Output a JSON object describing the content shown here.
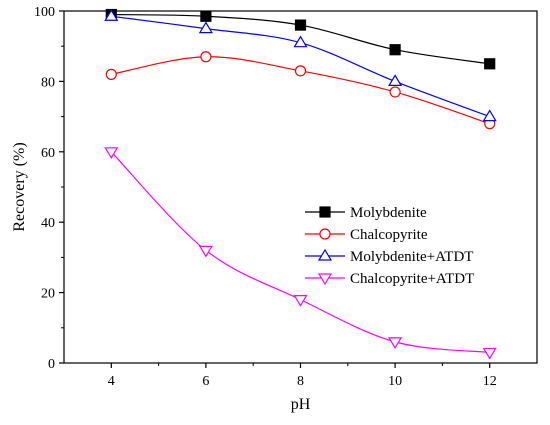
{
  "chart_data": {
    "type": "line",
    "xlabel": "pH",
    "ylabel": "Recovery (%)",
    "xlim": [
      3,
      13
    ],
    "ylim": [
      0,
      100
    ],
    "xticks": [
      4,
      6,
      8,
      10,
      12
    ],
    "yticks": [
      0,
      20,
      40,
      60,
      80,
      100
    ],
    "grid": false,
    "legend_position": "center-right",
    "series": [
      {
        "name": "Molybdenite",
        "color": "#000000",
        "marker": "square-filled",
        "x": [
          4,
          6,
          8,
          10,
          12
        ],
        "y": [
          99,
          98.5,
          96,
          89,
          85
        ]
      },
      {
        "name": "Chalcopyrite",
        "color": "#ff0000",
        "marker": "circle-open",
        "x": [
          4,
          6,
          8,
          10,
          12
        ],
        "y": [
          82,
          87,
          83,
          77,
          68
        ]
      },
      {
        "name": "Molybdenite+ATDT",
        "color": "#0000ff",
        "marker": "triangle-up-open",
        "x": [
          4,
          6,
          8,
          10,
          12
        ],
        "y": [
          98.5,
          95,
          91,
          80,
          70
        ]
      },
      {
        "name": "Chalcopyrite+ATDT",
        "color": "#ff00ff",
        "marker": "triangle-down-open",
        "x": [
          4,
          6,
          8,
          10,
          12
        ],
        "y": [
          60,
          32,
          18,
          6,
          3
        ]
      }
    ]
  }
}
